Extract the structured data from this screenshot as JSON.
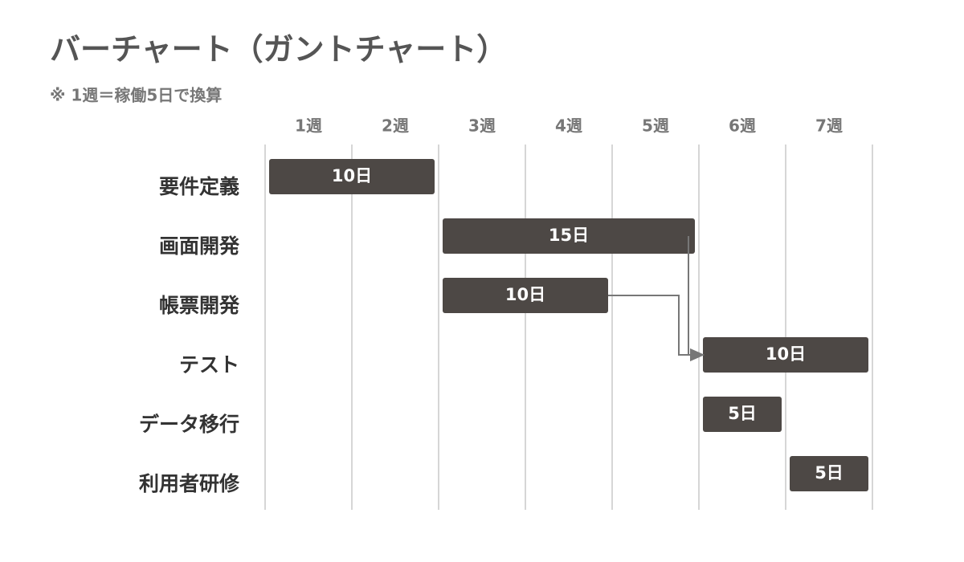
{
  "chart_data": {
    "type": "gantt",
    "title": "バーチャート（ガントチャート）",
    "subtitle": "※ 1週＝稼働5日で換算",
    "weeks": [
      "1週",
      "2週",
      "3週",
      "4週",
      "5週",
      "6週",
      "7週"
    ],
    "xlim": [
      0,
      35
    ],
    "xticks": [
      0,
      5,
      10,
      15,
      20,
      25,
      30,
      35
    ],
    "grid": true,
    "color": "#4d4845",
    "categories": [
      "要件定義",
      "画面開発",
      "帳票開発",
      "テスト",
      "データ移行",
      "利用者研修"
    ],
    "starts": [
      0,
      10,
      10,
      25,
      25,
      30
    ],
    "values": [
      10,
      15,
      10,
      10,
      5,
      5
    ],
    "value_labels": [
      "10日",
      "15日",
      "10日",
      "10日",
      "5日",
      "5日"
    ],
    "links": [
      {
        "from": 1,
        "to": 3
      },
      {
        "from": 2,
        "to": 3
      }
    ]
  }
}
